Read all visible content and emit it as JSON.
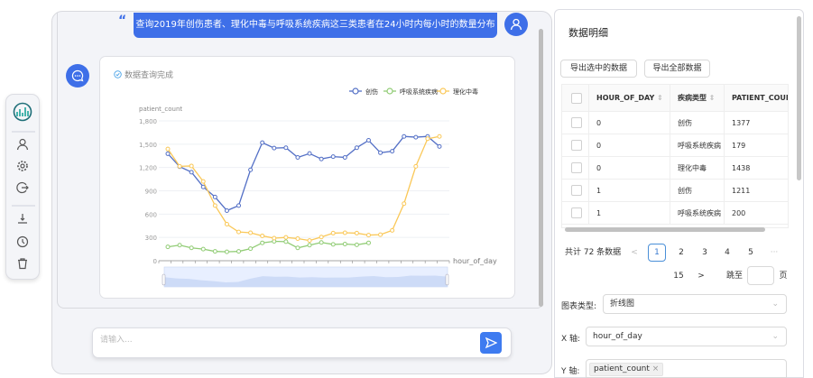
{
  "toolbar": {
    "items": [
      {
        "icon": "logo-chart-icon"
      },
      {
        "icon": "user-icon"
      },
      {
        "icon": "gear-icon"
      },
      {
        "icon": "logout-icon"
      },
      {
        "icon": "download-icon"
      },
      {
        "icon": "history-clock-icon"
      },
      {
        "icon": "trash-icon"
      }
    ]
  },
  "chat": {
    "user_message": "查询2019年创伤患者、理化中毒与呼吸系统疾病这三类患者在24小时内每小时的数量分布",
    "status": "数据查询完成",
    "input_placeholder": "请输入...",
    "accent": "#3e6fe8"
  },
  "chart_data": {
    "type": "line",
    "xlabel": "hour_of_day",
    "ylabel": "patient_count",
    "ylim": [
      0,
      1800
    ],
    "yticks": [
      "0",
      "300",
      "600",
      "900",
      "1,200",
      "1,500",
      "1,800"
    ],
    "x": [
      0,
      1,
      2,
      3,
      4,
      5,
      6,
      7,
      8,
      9,
      10,
      11,
      12,
      13,
      14,
      15,
      16,
      17,
      18,
      19,
      20,
      21,
      22,
      23
    ],
    "legend_position": "top-right",
    "grid": true,
    "series": [
      {
        "name": "创伤",
        "color": "#5470c6",
        "values": [
          1377,
          1211,
          1140,
          950,
          820,
          645,
          710,
          1170,
          1520,
          1450,
          1455,
          1330,
          1380,
          1310,
          1340,
          1330,
          1455,
          1550,
          1390,
          1410,
          1600,
          1590,
          1600,
          1470
        ]
      },
      {
        "name": "呼吸系统疾病",
        "color": "#91cc75",
        "values": [
          179,
          200,
          165,
          150,
          120,
          115,
          120,
          155,
          230,
          250,
          245,
          165,
          200,
          235,
          210,
          215,
          205,
          230,
          null,
          null,
          null,
          null,
          null,
          null
        ]
      },
      {
        "name": "理化中毒",
        "color": "#fac858",
        "values": [
          1438,
          1215,
          1220,
          1020,
          710,
          470,
          370,
          360,
          320,
          290,
          300,
          285,
          260,
          305,
          355,
          360,
          355,
          330,
          335,
          390,
          735,
          1215,
          1570,
          1600
        ]
      }
    ]
  },
  "panel": {
    "title": "数据明细",
    "export_selected": "导出选中的数据",
    "export_all": "导出全部数据",
    "columns": [
      "HOUR_OF_DAY",
      "疾病类型",
      "PATIENT_COUNT"
    ],
    "rows": [
      [
        "0",
        "创伤",
        "1377"
      ],
      [
        "0",
        "呼吸系统疾病",
        "179"
      ],
      [
        "0",
        "理化中毒",
        "1438"
      ],
      [
        "1",
        "创伤",
        "1211"
      ],
      [
        "1",
        "呼吸系统疾病",
        "200"
      ]
    ],
    "pagination": {
      "total": "共计 72 条数据",
      "pages": [
        "1",
        "2",
        "3",
        "4",
        "5"
      ],
      "ellipsis": "···",
      "last": "15",
      "current": "1",
      "jump_label": "跳至",
      "page_unit": "页",
      "prev": "<",
      "next": ">"
    },
    "chart_type_label": "图表类型:",
    "chart_type_value": "折线图",
    "x_axis_label": "X 轴:",
    "x_axis_value": "hour_of_day",
    "y_axis_label": "Y 轴:",
    "y_axis_tag": "patient_count"
  }
}
